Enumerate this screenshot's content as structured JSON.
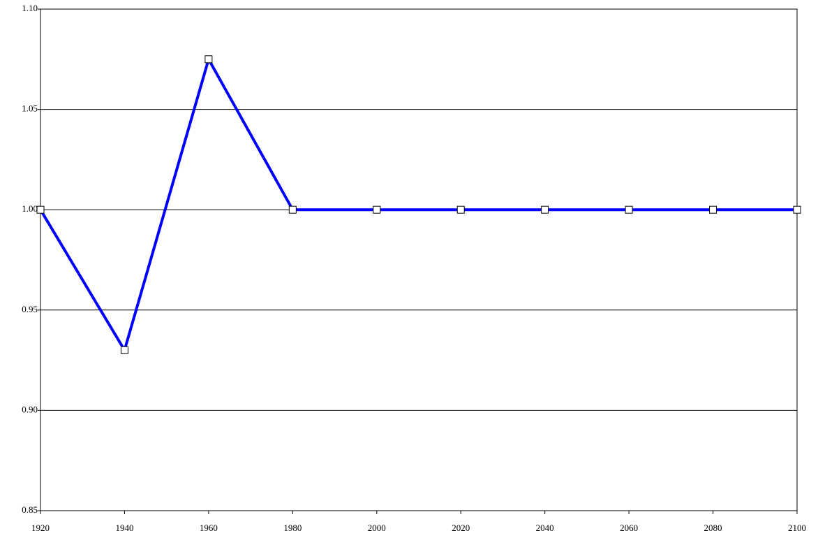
{
  "chart_data": {
    "type": "line",
    "x": [
      1920,
      1940,
      1960,
      1980,
      2000,
      2020,
      2040,
      2060,
      2080,
      2100
    ],
    "values": [
      1.0,
      0.93,
      1.075,
      1.0,
      1.0,
      1.0,
      1.0,
      1.0,
      1.0,
      1.0
    ],
    "color": "#0000ff",
    "xlim": [
      1920,
      2100
    ],
    "xticks": [
      1920,
      1940,
      1960,
      1980,
      2000,
      2020,
      2040,
      2060,
      2080,
      2100
    ],
    "ylim": [
      0.85,
      1.1
    ],
    "yticks": [
      0.85,
      {
        "value": 0.9,
        "label": "0.90"
      },
      0.95,
      {
        "value": 1.0,
        "label": "1.00"
      },
      1.05,
      {
        "value": 1.1,
        "label": "1.10"
      }
    ],
    "grid": true
  }
}
